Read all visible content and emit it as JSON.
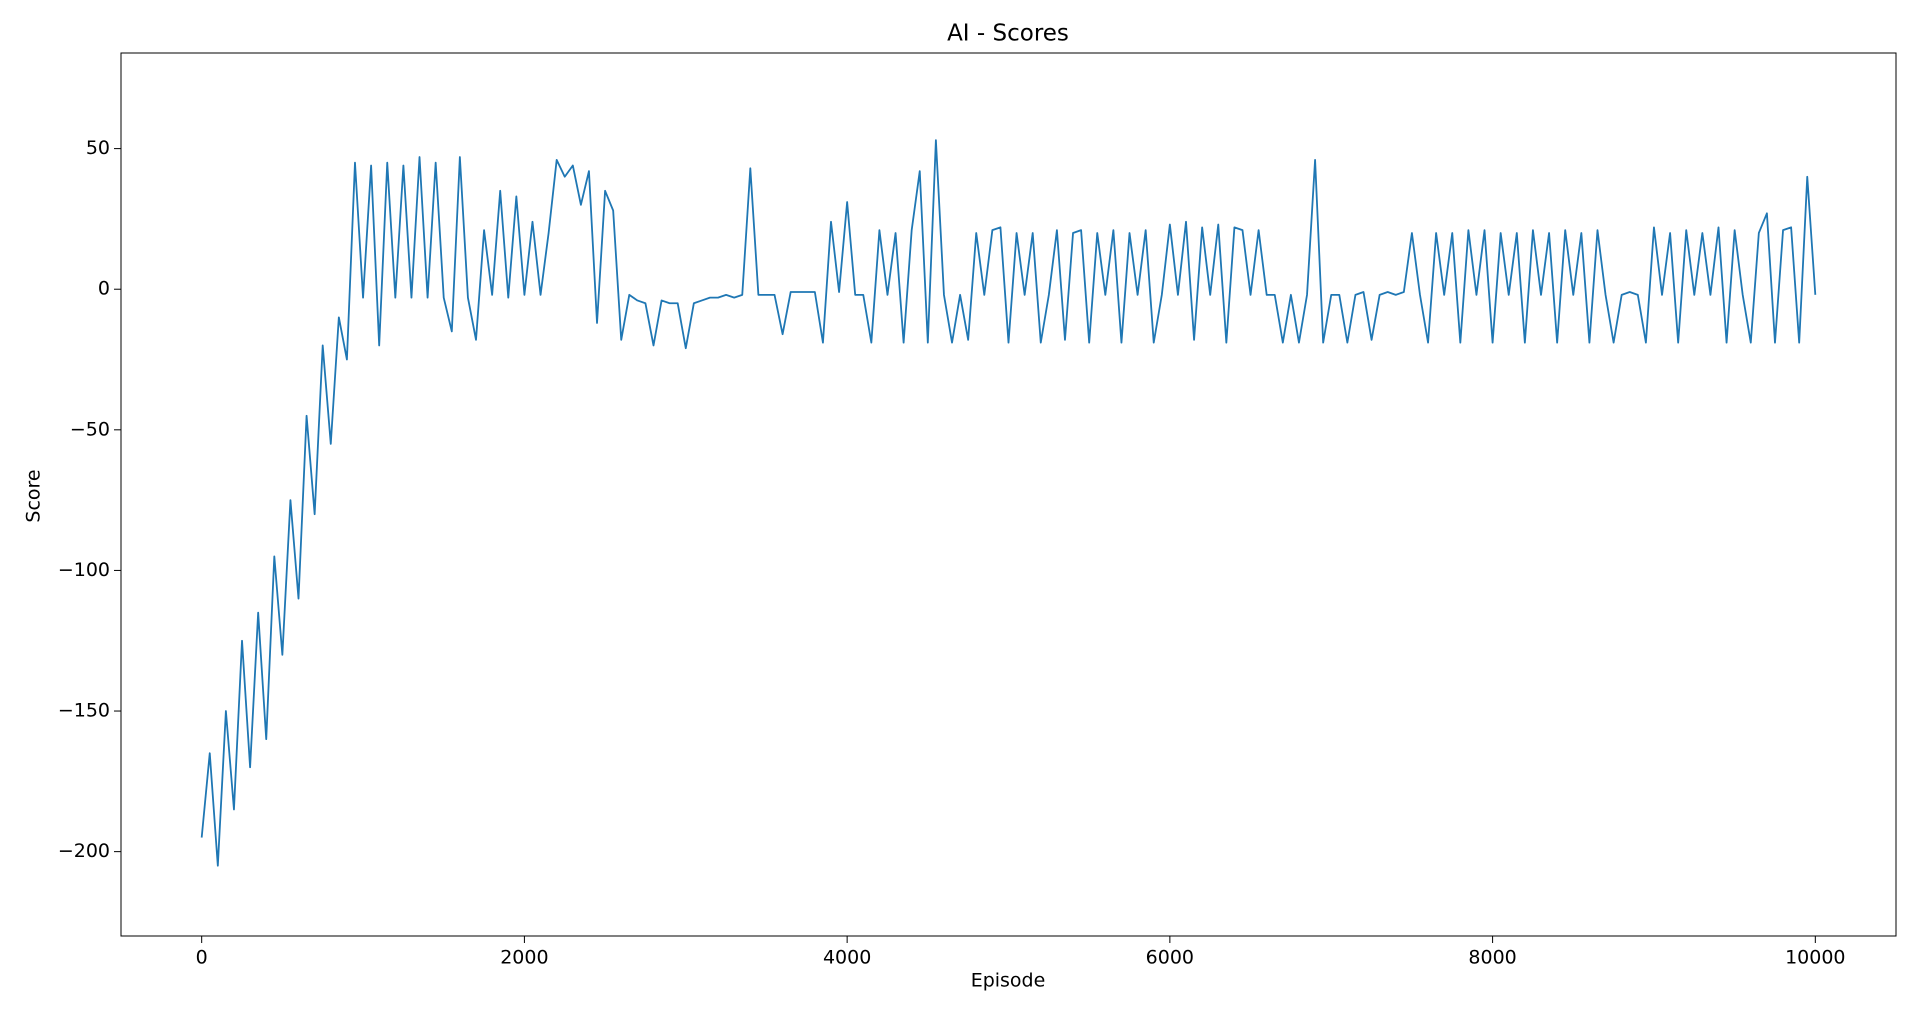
{
  "chart_data": {
    "type": "line",
    "title": "AI - Scores",
    "xlabel": "Episode",
    "ylabel": "Score",
    "color": "#1f77b4",
    "x": [
      0,
      50,
      100,
      150,
      200,
      250,
      300,
      350,
      400,
      450,
      500,
      550,
      600,
      650,
      700,
      750,
      800,
      850,
      900,
      950,
      1000,
      1050,
      1100,
      1150,
      1200,
      1250,
      1300,
      1350,
      1400,
      1450,
      1500,
      1550,
      1600,
      1650,
      1700,
      1750,
      1800,
      1850,
      1900,
      1950,
      2000,
      2050,
      2100,
      2150,
      2200,
      2250,
      2300,
      2350,
      2400,
      2450,
      2500,
      2550,
      2600,
      2650,
      2700,
      2750,
      2800,
      2850,
      2900,
      2950,
      3000,
      3050,
      3100,
      3150,
      3200,
      3250,
      3300,
      3350,
      3400,
      3450,
      3500,
      3550,
      3600,
      3650,
      3700,
      3750,
      3800,
      3850,
      3900,
      3950,
      4000,
      4050,
      4100,
      4150,
      4200,
      4250,
      4300,
      4350,
      4400,
      4450,
      4500,
      4550,
      4600,
      4650,
      4700,
      4750,
      4800,
      4850,
      4900,
      4950,
      5000,
      5050,
      5100,
      5150,
      5200,
      5250,
      5300,
      5350,
      5400,
      5450,
      5500,
      5550,
      5600,
      5650,
      5700,
      5750,
      5800,
      5850,
      5900,
      5950,
      6000,
      6050,
      6100,
      6150,
      6200,
      6250,
      6300,
      6350,
      6400,
      6450,
      6500,
      6550,
      6600,
      6650,
      6700,
      6750,
      6800,
      6850,
      6900,
      6950,
      7000,
      7050,
      7100,
      7150,
      7200,
      7250,
      7300,
      7350,
      7400,
      7450,
      7500,
      7550,
      7600,
      7650,
      7700,
      7750,
      7800,
      7850,
      7900,
      7950,
      8000,
      8050,
      8100,
      8150,
      8200,
      8250,
      8300,
      8350,
      8400,
      8450,
      8500,
      8550,
      8600,
      8650,
      8700,
      8750,
      8800,
      8850,
      8900,
      8950,
      9000,
      9050,
      9100,
      9150,
      9200,
      9250,
      9300,
      9350,
      9400,
      9450,
      9500,
      9550,
      9600,
      9650,
      9700,
      9750,
      9800,
      9850,
      9900,
      9950,
      10000
    ],
    "values": [
      -195,
      -165,
      -205,
      -150,
      -185,
      -125,
      -170,
      -115,
      -160,
      -95,
      -130,
      -75,
      -110,
      -45,
      -80,
      -20,
      -55,
      -10,
      -25,
      45,
      -3,
      44,
      -20,
      45,
      -3,
      44,
      -3,
      47,
      -3,
      45,
      -3,
      -15,
      47,
      -3,
      -18,
      21,
      -2,
      35,
      -3,
      33,
      -2,
      24,
      -2,
      20,
      46,
      40,
      44,
      30,
      42,
      -12,
      35,
      28,
      -18,
      -2,
      -4,
      -5,
      -20,
      -4,
      -5,
      -5,
      -21,
      -5,
      -4,
      -3,
      -3,
      -2,
      -3,
      -2,
      43,
      -2,
      -2,
      -2,
      -16,
      -1,
      -1,
      -1,
      -1,
      -19,
      24,
      -1,
      31,
      -2,
      -2,
      -19,
      21,
      -2,
      20,
      -19,
      21,
      42,
      -19,
      53,
      -2,
      -19,
      -2,
      -18,
      20,
      -2,
      21,
      22,
      -19,
      20,
      -2,
      20,
      -19,
      -2,
      21,
      -18,
      20,
      21,
      -19,
      20,
      -2,
      21,
      -19,
      20,
      -2,
      21,
      -19,
      -2,
      23,
      -2,
      24,
      -18,
      22,
      -2,
      23,
      -19,
      22,
      21,
      -2,
      21,
      -2,
      -2,
      -19,
      -2,
      -19,
      -2,
      46,
      -19,
      -2,
      -2,
      -19,
      -2,
      -1,
      -18,
      -2,
      -1,
      -2,
      -1,
      20,
      -2,
      -19,
      20,
      -2,
      20,
      -19,
      21,
      -2,
      21,
      -19,
      20,
      -2,
      20,
      -19,
      21,
      -2,
      20,
      -19,
      21,
      -2,
      20,
      -19,
      21,
      -2,
      -19,
      -2,
      -1,
      -2,
      -19,
      22,
      -2,
      20,
      -19,
      21,
      -2,
      20,
      -2,
      22,
      -19,
      21,
      -2,
      -19,
      20,
      27,
      -19,
      21,
      22,
      -19,
      40,
      -2
    ],
    "xlim": [
      -500,
      10500
    ],
    "ylim": [
      -230,
      84
    ],
    "xticks": [
      0,
      2000,
      4000,
      6000,
      8000,
      10000
    ],
    "yticks": [
      {
        "value": -200,
        "label": "−200"
      },
      {
        "value": -150,
        "label": "−150"
      },
      {
        "value": -100,
        "label": "−100"
      },
      {
        "value": -50,
        "label": "−50"
      },
      0,
      50
    ]
  }
}
